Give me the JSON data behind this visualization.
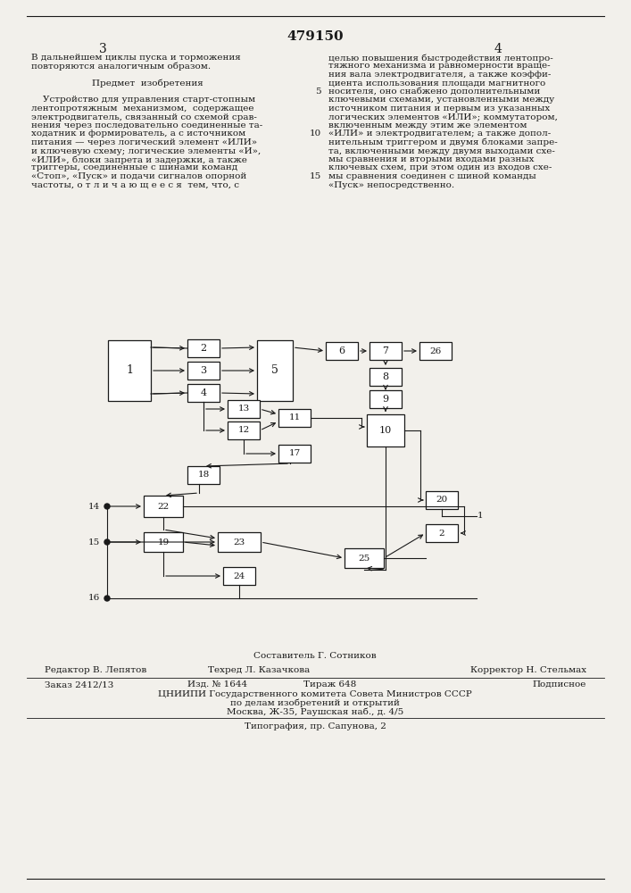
{
  "patent_number": "479150",
  "page_left": "3",
  "page_right": "4",
  "composer": "Составитель Г. Сотников",
  "editor": "Редактор В. Лепятов",
  "techred": "Техред Л. Казачкова",
  "corrector": "Корректор Н. Стельмах",
  "order": "Заказ 2412/13",
  "izd": "Изд. № 1644",
  "tirazh": "Тираж 648",
  "podpisnoe": "Подписное",
  "tsniipi": "ЦНИИПИ Государственного комитета Совета Министров СССР",
  "podelam": "по делам изобретений и открытий",
  "moscow": "Москва, Ж-35, Раушская наб., д. 4/5",
  "typography": "Типография, пр. Сапунова, 2",
  "bg_color": "#f2f0eb",
  "text_color": "#1a1a1a",
  "left_col_lines": [
    "В дальнейшем циклы пуска и торможения",
    "повторяются аналогичным образом.",
    "",
    "    Предмет  изобретения",
    "",
    "    Устройство для управления старт-стопным",
    "лентопротяжным  механизмом,  содержащее",
    "электродвигатель, связанный со схемой срав-",
    "нения через последовательно соединенные та-",
    "ходатник и формирователь, а с источником",
    "питания — через логический элемент «ИЛИ»",
    "и ключевую схему; логические элементы «И»,",
    "«ИЛИ», блоки запрета и задержки, а также",
    "триггеры, соединенные с шинами команд",
    "«Стоп», «Пуск» и подачи сигналов опорной",
    "частоты, о т л и ч а ю щ е е с я  тем, что, с"
  ],
  "right_col_lines": [
    "целью повышения быстродействия лентопро-",
    "тяжного механизма и равномерности враще-",
    "ния вала электродвигателя, а также коэффи-",
    "циента использования площади магнитного",
    "носителя, оно снабжено дополнительными",
    "ключевыми схемами, установленными между",
    "источником питания и первым из указанных",
    "логических элементов «ИЛИ»; коммутатором,",
    "включенным между этим же элементом",
    "«ИЛИ» и электродвигателем; а также допол-",
    "нительным триггером и двумя блоками запре-",
    "та, включенными между двумя выходами схе-",
    "мы сравнения и вторыми входами разных",
    "ключевых схем, при этом один из входов схе-",
    "мы сравнения соединен с шиной команды",
    "«Пуск» непосредственно."
  ]
}
